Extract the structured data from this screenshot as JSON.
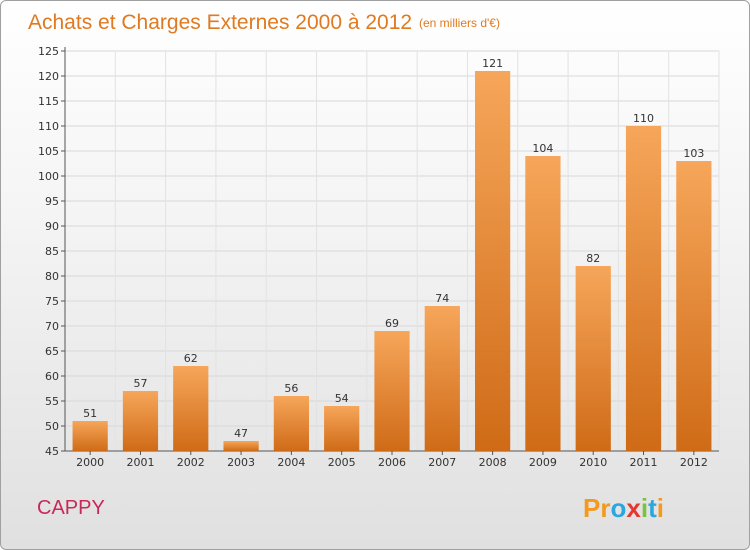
{
  "header": {
    "title": "Achats et Charges Externes 2000 à 2012",
    "unit": "(en milliers d'€)"
  },
  "footer": {
    "place": "CAPPY",
    "logo_text": "Proxiti"
  },
  "colors": {
    "title": "#e07a20",
    "place": "#c8285a",
    "bar_top": "#f6a65a",
    "bar_bottom": "#cf6b17"
  },
  "chart_data": {
    "type": "bar",
    "title": "Achats et Charges Externes 2000 à 2012",
    "subtitle": "(en milliers d'€)",
    "categories": [
      "2000",
      "2001",
      "2002",
      "2003",
      "2004",
      "2005",
      "2006",
      "2007",
      "2008",
      "2009",
      "2010",
      "2011",
      "2012"
    ],
    "values": [
      51,
      57,
      62,
      47,
      56,
      54,
      69,
      74,
      121,
      104,
      82,
      110,
      103
    ],
    "ylim": [
      45,
      125
    ],
    "yticks": [
      45,
      50,
      55,
      60,
      65,
      70,
      75,
      80,
      85,
      90,
      95,
      100,
      105,
      110,
      115,
      120,
      125
    ],
    "grid": true,
    "xlabel": "",
    "ylabel": ""
  }
}
